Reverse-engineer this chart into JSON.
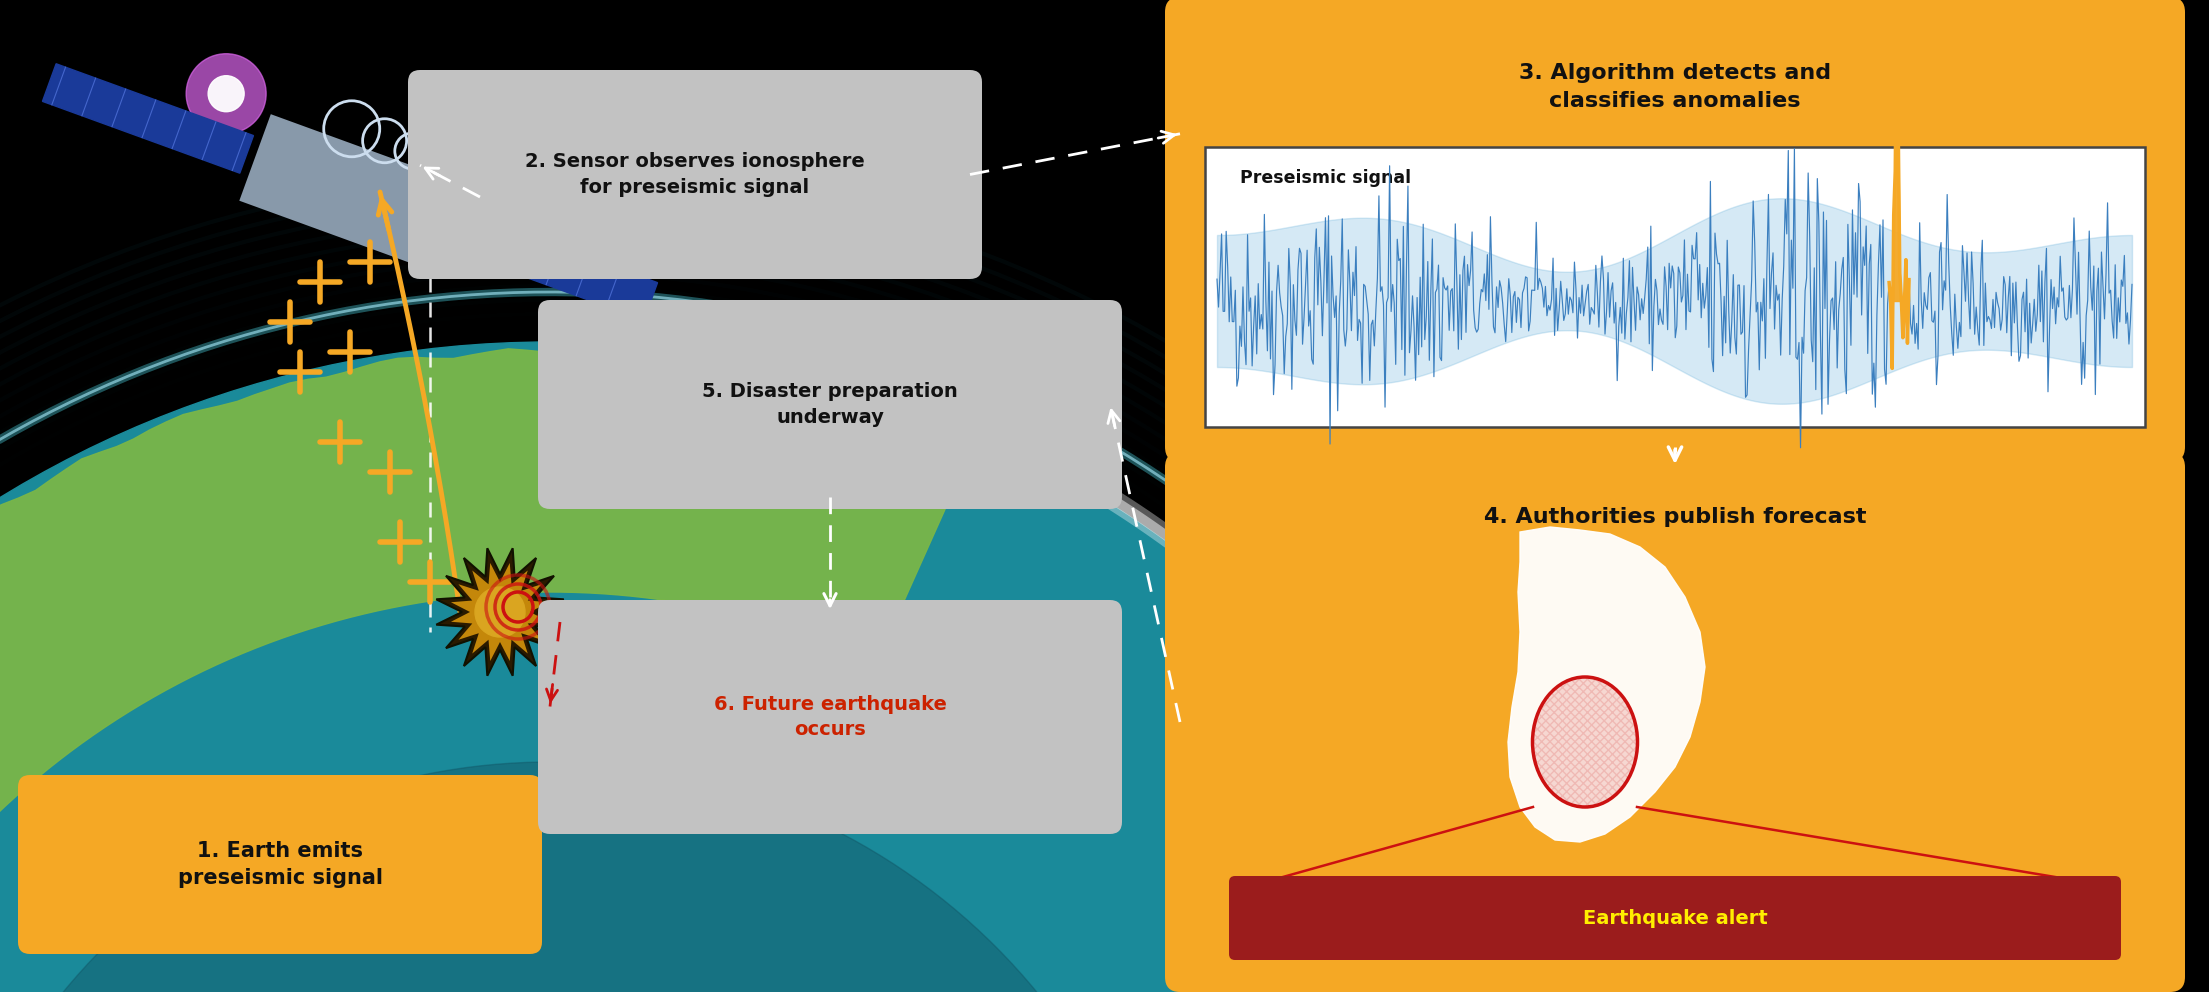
{
  "fig_width": 22.09,
  "fig_height": 9.92,
  "bg_black": "#000000",
  "orange": "#F5A825",
  "gray_box": "#C2C2C2",
  "white": "#FFFFFF",
  "dark_text": "#111111",
  "red": "#CC1111",
  "dark_red": "#9B1C1C",
  "yellow": "#FFEE00",
  "blue_sig": "#3B7FBF",
  "blue_sig_fill": "#5BAAD8",
  "teal_earth": "#1A8A9A",
  "teal_mid": "#1E7080",
  "green_land": "#7AB648",
  "atm_cyan": "#44CCEE",
  "step1_text": "1. Earth emits\npreseismic signal",
  "step2_text": "2. Sensor observes ionosphere\nfor preseismic signal",
  "step3_title": "3. Algorithm detects and\nclassifies anomalies",
  "step3_sub": "Preseismic signal",
  "step4_title": "4. Authorities publish forecast",
  "step4_alert": "Earthquake alert",
  "step5_text": "5. Disaster preparation\nunderway",
  "step6_text": "6. Future earthquake\noccurs"
}
